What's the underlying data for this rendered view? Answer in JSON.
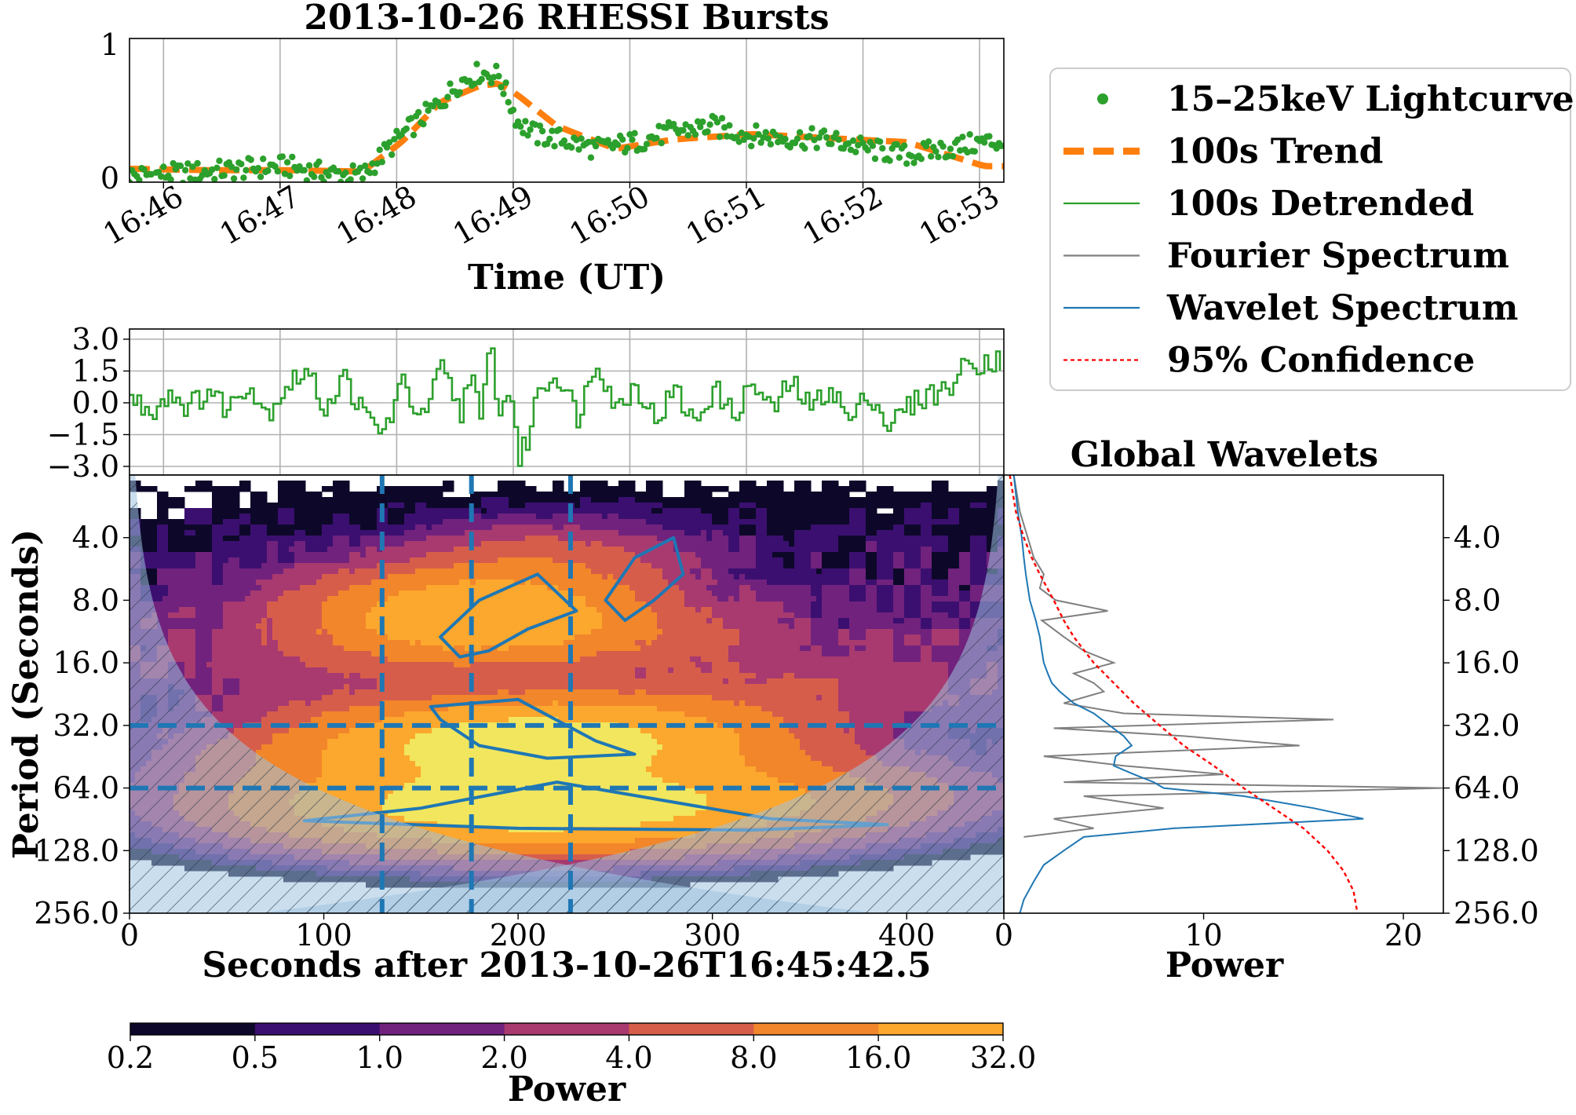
{
  "chart_data": [
    {
      "type": "scatter",
      "title": "2013-10-26 RHESSI Bursts",
      "xlabel": "Time (UT)",
      "ylabel": "",
      "xtick_labels": [
        "16:46",
        "16:47",
        "16:48",
        "16:49",
        "16:50",
        "16:51",
        "16:52",
        "16:53"
      ],
      "ytick_labels": [
        "0",
        "1"
      ],
      "ylim": [
        0,
        1
      ],
      "grid": true,
      "series": [
        {
          "name": "15–25keV Lightcurve",
          "color": "#2ca02c",
          "time_seconds": [
            0,
            20,
            40,
            60,
            80,
            100,
            120,
            140,
            160,
            170,
            180,
            190,
            200,
            210,
            220,
            240,
            260,
            280,
            300,
            320,
            340,
            360,
            380,
            400,
            420,
            440
          ],
          "values": [
            0.05,
            0.06,
            0.08,
            0.1,
            0.12,
            0.07,
            0.05,
            0.35,
            0.6,
            0.75,
            0.82,
            0.8,
            0.45,
            0.35,
            0.33,
            0.25,
            0.3,
            0.38,
            0.42,
            0.35,
            0.33,
            0.32,
            0.25,
            0.2,
            0.25,
            0.3
          ]
        },
        {
          "name": "100s Trend",
          "color": "#ff7f0e",
          "time_seconds": [
            0,
            40,
            80,
            120,
            140,
            160,
            180,
            190,
            200,
            220,
            250,
            280,
            320,
            360,
            400,
            440
          ],
          "values": [
            0.1,
            0.09,
            0.09,
            0.08,
            0.3,
            0.6,
            0.72,
            0.74,
            0.65,
            0.42,
            0.25,
            0.32,
            0.36,
            0.33,
            0.3,
            0.12
          ]
        }
      ]
    },
    {
      "type": "line",
      "title": "",
      "xlabel": "",
      "ylabel": "",
      "ytick_labels": [
        "3.0",
        "1.5",
        "0.0",
        "−1.5",
        "−3.0"
      ],
      "ylim": [
        -3.0,
        3.3
      ],
      "grid": true,
      "series": [
        {
          "name": "100s Detrended",
          "color": "#2ca02c",
          "time_seconds": [
            0,
            10,
            20,
            30,
            40,
            50,
            60,
            70,
            80,
            90,
            100,
            110,
            120,
            130,
            140,
            150,
            160,
            170,
            175,
            180,
            185,
            190,
            195,
            200,
            205,
            210,
            220,
            230,
            240,
            250,
            260,
            270,
            280,
            290,
            300,
            310,
            320,
            330,
            340,
            350,
            360,
            370,
            380,
            390,
            400,
            410,
            420,
            430,
            440
          ],
          "values": [
            0.2,
            -0.4,
            0.5,
            -0.2,
            0.6,
            -0.3,
            1.0,
            -0.5,
            0.8,
            1.5,
            -0.2,
            1.2,
            -0.6,
            -1.4,
            0.9,
            -0.8,
            1.6,
            -0.5,
            1.9,
            -1.2,
            3.0,
            -0.8,
            1.0,
            -2.7,
            -1.5,
            0.8,
            1.3,
            -0.6,
            2.1,
            -0.3,
            0.9,
            -0.8,
            0.6,
            -1.0,
            0.7,
            -0.6,
            0.9,
            -0.4,
            1.0,
            -0.3,
            0.8,
            -0.9,
            0.5,
            -1.1,
            -0.2,
            0.4,
            0.6,
            1.8,
            2.0
          ]
        }
      ]
    },
    {
      "type": "heatmap",
      "title": "",
      "xlabel": "Seconds after 2013-10-26T16:45:42.5",
      "ylabel": "Period (Seconds)",
      "xlim": [
        0,
        450
      ],
      "xtick_labels": [
        "0",
        "100",
        "200",
        "300",
        "400"
      ],
      "ylim": [
        256.0,
        2.0
      ],
      "ytick_labels": [
        "4.0",
        "8.0",
        "16.0",
        "32.0",
        "64.0",
        "128.0",
        "256.0"
      ],
      "y_scale": "log2",
      "marked_times_seconds": [
        130,
        176,
        227
      ],
      "marked_periods": [
        32,
        64
      ],
      "hotspots": [
        {
          "time": 182,
          "period": 10,
          "power": 24
        },
        {
          "time": 215,
          "period": 5.5,
          "power": 6
        },
        {
          "time": 165,
          "period": 8,
          "power": 7
        },
        {
          "time": 200,
          "period": 37,
          "power": 26
        },
        {
          "time": 215,
          "period": 42,
          "power": 20
        },
        {
          "time": 230,
          "period": 80,
          "power": 28
        },
        {
          "time": 170,
          "period": 80,
          "power": 22
        },
        {
          "time": 120,
          "period": 50,
          "power": 4
        },
        {
          "time": 320,
          "period": 70,
          "power": 9
        },
        {
          "time": 270,
          "period": 30,
          "power": 5
        },
        {
          "time": 100,
          "period": 16,
          "power": 2
        },
        {
          "time": 250,
          "period": 12,
          "power": 3
        },
        {
          "time": 360,
          "period": 20,
          "power": 2
        }
      ],
      "colorbar": {
        "label": "Power",
        "ticks": [
          "0.2",
          "0.5",
          "1.0",
          "2.0",
          "4.0",
          "8.0",
          "16.0",
          "32.0"
        ],
        "levels": [
          0.2,
          0.5,
          1.0,
          2.0,
          4.0,
          8.0,
          16.0,
          32.0
        ],
        "colors": [
          "#0d0829",
          "#3b0f70",
          "#71227d",
          "#a83a6f",
          "#d75d4b",
          "#f2862a",
          "#fca72d",
          "#f1e65e"
        ]
      }
    },
    {
      "type": "line",
      "title": "Global Wavelets",
      "xlabel": "Power",
      "ylabel": "",
      "xlim": [
        0,
        22
      ],
      "xtick_labels": [
        "0",
        "10",
        "20"
      ],
      "ytick_labels": [
        "4.0",
        "8.0",
        "16.0",
        "32.0",
        "64.0",
        "128.0",
        "256.0"
      ],
      "series": [
        {
          "name": "Fourier Spectrum",
          "color": "#808080",
          "period": [
            2,
            3,
            4,
            5,
            6,
            7,
            8,
            9,
            10,
            12,
            14,
            16,
            18,
            20,
            22,
            25,
            28,
            30,
            33,
            36,
            40,
            45,
            50,
            55,
            60,
            64,
            70,
            80,
            90,
            100,
            110
          ],
          "power": [
            0.5,
            0.8,
            1.2,
            1.5,
            2.0,
            1.8,
            2.6,
            5.2,
            1.9,
            3.0,
            4.0,
            5.5,
            3.5,
            4.5,
            5.0,
            3.0,
            6.0,
            16.5,
            2.5,
            9.0,
            14.8,
            2.0,
            6.0,
            11.0,
            3.0,
            22.0,
            4.0,
            8.0,
            2.5,
            4.5,
            1.0
          ]
        },
        {
          "name": "Wavelet Spectrum",
          "color": "#1f77b4",
          "period": [
            2,
            3,
            4,
            5,
            6,
            8,
            10,
            12,
            14,
            16,
            18,
            20,
            22,
            25,
            28,
            32,
            36,
            40,
            45,
            50,
            55,
            60,
            64,
            70,
            80,
            90,
            100,
            110,
            128,
            150,
            180,
            220,
            256
          ],
          "power": [
            0.5,
            0.7,
            0.9,
            1.0,
            1.1,
            1.3,
            1.6,
            1.8,
            1.9,
            2.0,
            2.2,
            2.4,
            2.8,
            3.5,
            4.5,
            5.3,
            6.0,
            6.4,
            5.6,
            5.5,
            6.5,
            7.5,
            8.0,
            12.0,
            15.5,
            18.0,
            8.5,
            4.0,
            3.0,
            2.0,
            1.5,
            1.0,
            0.8
          ]
        },
        {
          "name": "95% Confidence",
          "color": "#ff0000",
          "period": [
            2,
            3,
            4,
            5,
            6,
            8,
            10,
            12,
            16,
            20,
            25,
            32,
            40,
            50,
            64,
            80,
            100,
            128,
            160,
            200,
            256
          ],
          "power": [
            0.3,
            0.6,
            1.0,
            1.4,
            1.8,
            2.5,
            3.0,
            3.5,
            4.5,
            5.5,
            6.5,
            7.8,
            9.0,
            10.5,
            12.0,
            13.5,
            15.0,
            16.2,
            17.0,
            17.5,
            17.7
          ]
        }
      ]
    }
  ],
  "legend": {
    "placement": "top-right",
    "entries": [
      {
        "name": "15–25keV Lightcurve",
        "color": "#2ca02c",
        "style": "marker"
      },
      {
        "name": "100s Trend",
        "color": "#ff7f0e",
        "style": "thick-dashed"
      },
      {
        "name": "100s Detrended",
        "color": "#2ca02c",
        "style": "line"
      },
      {
        "name": "Fourier Spectrum",
        "color": "#808080",
        "style": "line"
      },
      {
        "name": "Wavelet Spectrum",
        "color": "#1f77b4",
        "style": "line"
      },
      {
        "name": "95% Confidence",
        "color": "#ff0000",
        "style": "dotted"
      }
    ]
  },
  "accent_colors": {
    "coi_fill": "#9ec3e0",
    "marker_lines": "#1f77b4"
  }
}
